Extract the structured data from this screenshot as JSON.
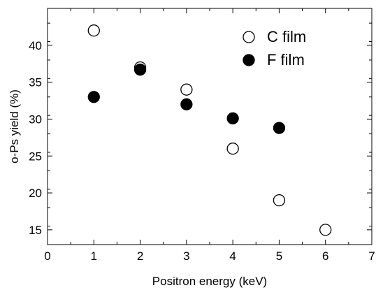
{
  "chart_data": {
    "type": "scatter",
    "title": "",
    "xlabel": "Positron energy (keV)",
    "ylabel": "o-Ps yield (%)",
    "xlim": [
      0,
      7
    ],
    "ylim": [
      13,
      45
    ],
    "xticks": [
      0,
      1,
      2,
      3,
      4,
      5,
      6,
      7
    ],
    "yticks": [
      15,
      20,
      25,
      30,
      35,
      40
    ],
    "grid": false,
    "legend_position": "top-right",
    "series": [
      {
        "name": "C film",
        "marker": "open-circle",
        "color": "#000000",
        "x": [
          1,
          2,
          3,
          4,
          5,
          6
        ],
        "y": [
          42,
          37,
          34,
          26,
          19,
          15
        ]
      },
      {
        "name": "F film",
        "marker": "filled-circle",
        "color": "#000000",
        "x": [
          1,
          2,
          3,
          4,
          5
        ],
        "y": [
          33,
          36.7,
          32,
          30.1,
          28.8
        ]
      }
    ]
  }
}
